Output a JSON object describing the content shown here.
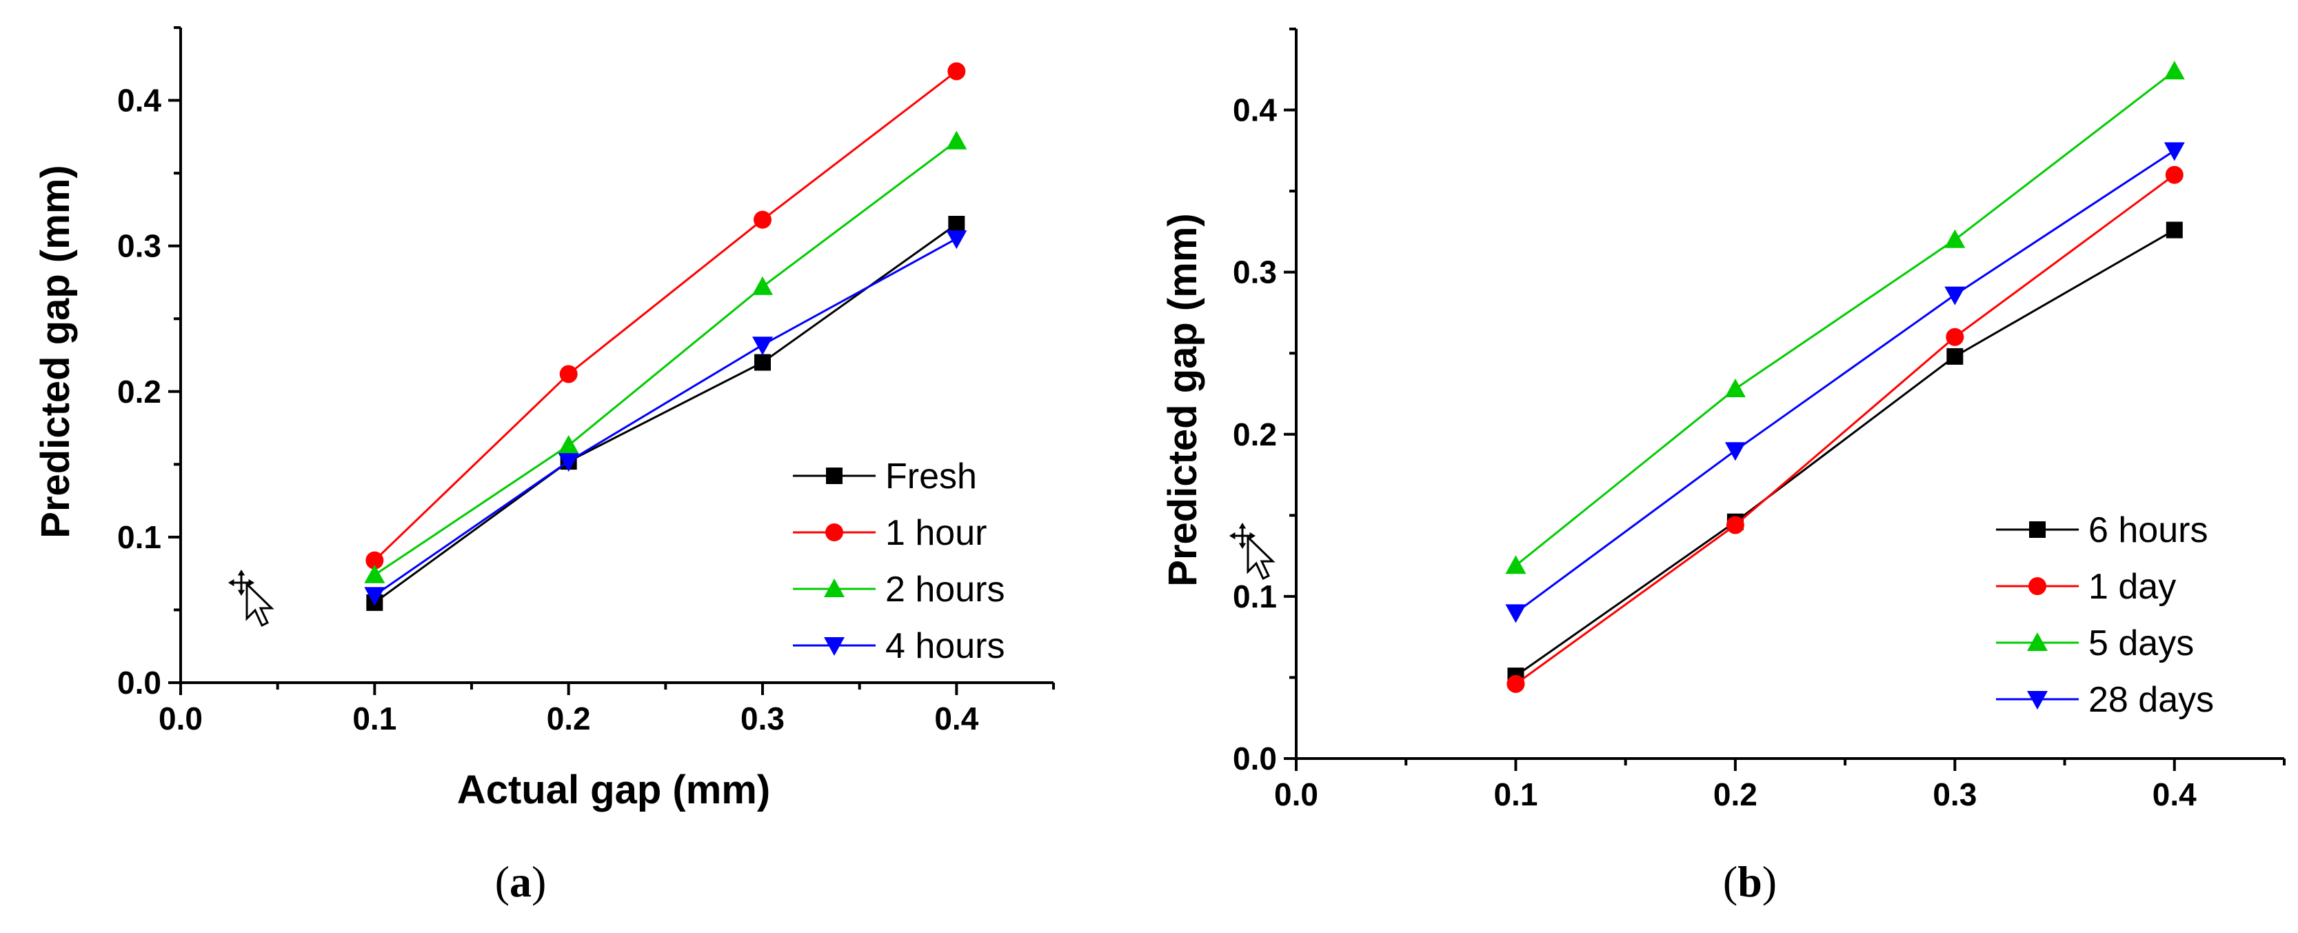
{
  "chart_data": [
    {
      "type": "line",
      "panel_label": "a",
      "title": "",
      "xlabel": "Actual gap (mm)",
      "ylabel": "Predicted gap (mm)",
      "xlim": [
        0.0,
        0.45
      ],
      "ylim": [
        0.0,
        0.45
      ],
      "xticks": [
        "0.0",
        "0.1",
        "0.2",
        "0.3",
        "0.4"
      ],
      "yticks": [
        "0.0",
        "0.1",
        "0.2",
        "0.3",
        "0.4"
      ],
      "x": [
        0.1,
        0.2,
        0.3,
        0.4
      ],
      "legend_position": "bottom-right",
      "series": [
        {
          "name": "Fresh",
          "color": "#000000",
          "marker": "square",
          "values": [
            0.055,
            0.152,
            0.22,
            0.315
          ]
        },
        {
          "name": "1 hour",
          "color": "#ff0000",
          "marker": "circle",
          "values": [
            0.084,
            0.212,
            0.318,
            0.42
          ]
        },
        {
          "name": "2 hours",
          "color": "#00cc00",
          "marker": "triangle-up",
          "values": [
            0.074,
            0.163,
            0.272,
            0.372
          ]
        },
        {
          "name": "4 hours",
          "color": "#0000ff",
          "marker": "triangle-down",
          "values": [
            0.06,
            0.152,
            0.232,
            0.305
          ]
        }
      ]
    },
    {
      "type": "line",
      "panel_label": "b",
      "title": "",
      "xlabel": "",
      "ylabel": "Predicted gap (mm)",
      "xlim": [
        0.0,
        0.45
      ],
      "ylim": [
        0.0,
        0.45
      ],
      "xticks": [
        "0.0",
        "0.1",
        "0.2",
        "0.3",
        "0.4"
      ],
      "yticks": [
        "0.0",
        "0.1",
        "0.2",
        "0.3",
        "0.4"
      ],
      "x": [
        0.1,
        0.2,
        0.3,
        0.4
      ],
      "legend_position": "bottom-right",
      "series": [
        {
          "name": "6 hours",
          "color": "#000000",
          "marker": "square",
          "values": [
            0.051,
            0.146,
            0.248,
            0.326
          ]
        },
        {
          "name": "1 day",
          "color": "#ff0000",
          "marker": "circle",
          "values": [
            0.046,
            0.144,
            0.26,
            0.36
          ]
        },
        {
          "name": "5 days",
          "color": "#00cc00",
          "marker": "triangle-up",
          "values": [
            0.119,
            0.228,
            0.32,
            0.424
          ]
        },
        {
          "name": "28 days",
          "color": "#0000ff",
          "marker": "triangle-down",
          "values": [
            0.09,
            0.19,
            0.286,
            0.375
          ]
        }
      ]
    }
  ],
  "icons": [
    "move-cursor-icon",
    "move-cursor-icon"
  ]
}
